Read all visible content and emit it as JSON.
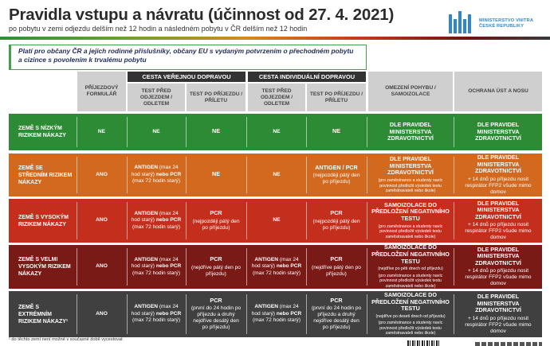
{
  "header": {
    "title": "Pravidla vstupu a návratu (účinnost od 27. 4. 2021)",
    "subtitle": "po pobytu v zemi odjezdu delším než 12 hodin a následném pobytu v ČR delším než 12 hodin"
  },
  "logo": {
    "line1": "MINISTERSTVO VNITRA",
    "line2": "ČESKÉ REPUBLIKY",
    "color": "#2f86c8"
  },
  "note": {
    "line1": "Platí pro občany ČR a jejich rodinné příslušníky, občany EU s vydaným potvrzením o přechodném pobytu",
    "line2": "a cizince s povolením k trvalému pobytu"
  },
  "groups": {
    "public": "CESTA VEŘEJNOU DOPRAVOU",
    "individual": "CESTA INDIVIDUÁLNÍ DOPRAVOU"
  },
  "columns": {
    "form": "PŘÍJEZDOVÝ FORMULÁŘ",
    "test_before_pub": "TEST PŘED ODJEZDEM / ODLETEM",
    "test_after_pub": "TEST PO PŘÍJEZDU / PŘÍLETU",
    "test_before_ind": "TEST PŘED ODJEZDEM / ODLETEM",
    "test_after_ind": "TEST PO PŘÍJEZDU / PŘÍLETU",
    "movement": "OMEZENÍ POHYBU / SAMOIZOLACE",
    "protection": "OCHRANA ÚST A NOSU"
  },
  "rows": [
    {
      "color": "#2e8b35",
      "zone": "ZEMĚ S NÍZKÝM RIZIKEM NÁKAZY",
      "form": "NE",
      "tb_pub": {
        "a": "NE",
        "b": "",
        "c": ""
      },
      "ta_pub": {
        "a": "NE",
        "b": ""
      },
      "tb_ind": {
        "a": "NE",
        "b": "",
        "c": ""
      },
      "ta_ind": {
        "a": "NE",
        "b": ""
      },
      "move": {
        "a": "DLE PRAVIDEL MINISTERSTVA ZDRAVOTNICTVÍ",
        "b": ""
      },
      "prot": {
        "a": "DLE PRAVIDEL MINISTERSTVA ZDRAVOTNICTVÍ",
        "b": ""
      }
    },
    {
      "color": "#d2691e",
      "zone": "ZEMĚ SE STŘEDNÍM RIZIKEM NÁKAZY",
      "form": "ANO",
      "tb_pub": {
        "a": "ANTIGEN",
        "b": " (max 24 hod starý) ",
        "c": "nebo PCR",
        "d": " (max 72 hodin starý)"
      },
      "ta_pub": {
        "a": "NE",
        "b": ""
      },
      "tb_ind": {
        "a": "NE",
        "b": "",
        "c": "",
        "d": ""
      },
      "ta_ind": {
        "a": "ANTIGEN / PCR",
        "b": "(nejpozději pátý den po příjezdu)"
      },
      "move": {
        "a": "DLE PRAVIDEL MINISTERSTVA ZDRAVOTNICTVÍ",
        "b": "(pro zaměstnance a studenty navíc povinnost předložit výsledek testu zaměstnavateli nebo škole)"
      },
      "prot": {
        "a": "DLE PRAVIDEL MINISTERSTVA ZDRAVOTNICTVÍ",
        "b": "+ 14 dnů po příjezdu nosit respirátor FFP2 všude mimo domov"
      }
    },
    {
      "color": "#c42f1d",
      "zone": "ZEMĚ S VYSOKÝM RIZIKEM NÁKAZY",
      "form": "ANO",
      "tb_pub": {
        "a": "ANTIGEN",
        "b": " (max 24 hod starý) ",
        "c": "nebo PCR",
        "d": " (max 72 hodin starý)"
      },
      "ta_pub": {
        "a": "PCR",
        "b": "(nejpozději pátý den po příjezdu)"
      },
      "tb_ind": {
        "a": "NE",
        "b": "",
        "c": "",
        "d": ""
      },
      "ta_ind": {
        "a": "PCR",
        "b": "(nejpozději pátý den po příjezdu)"
      },
      "move": {
        "a": "SAMOIZOLACE DO PŘEDLOŽENÍ NEGATIVNÍHO TESTU",
        "b": "(pro zaměstnance a studenty navíc povinnost předložit výsledek testu zaměstnavateli nebo škole)"
      },
      "prot": {
        "a": "DLE PRAVIDEL MINISTERSTVA ZDRAVOTNICTVÍ",
        "b": "+ 14 dnů po příjezdu nosit respirátor FFP2 všude mimo domov"
      }
    },
    {
      "color": "#7a1a17",
      "zone": "ZEMĚ S VELMI VYSOKÝM RIZIKEM NÁKAZY",
      "form": "ANO",
      "tb_pub": {
        "a": "ANTIGEN",
        "b": " (max 24 hod starý) ",
        "c": "nebo PCR",
        "d": " (max 72 hodin starý)"
      },
      "ta_pub": {
        "a": "PCR",
        "b": "(nejdříve pátý den po příjezdu)"
      },
      "tb_ind": {
        "a": "ANTIGEN",
        "b": " (max 24 hod starý) ",
        "c": "nebo PCR",
        "d": " (max 72 hodin starý)"
      },
      "ta_ind": {
        "a": "PCR",
        "b": "(nejdříve pátý den po příjezdu)"
      },
      "move": {
        "a": "SAMOIZOLACE DO PŘEDLOŽENÍ NEGATIVNÍHO TESTU",
        "b": "(nejdříve po pěti dnech od příjezdu)",
        "c": "(pro zaměstnance a studenty navíc povinnost předložit výsledek testu zaměstnavateli nebo škole)"
      },
      "prot": {
        "a": "DLE PRAVIDEL MINISTERSTVA ZDRAVOTNICTVÍ",
        "b": "+ 14 dnů po příjezdu nosit respirátor FFP2 všude mimo domov"
      }
    },
    {
      "color": "#404040",
      "zone": "ZEMĚ S EXTRÉMNÍM RIZIKEM NÁKAZY¹",
      "form": "ANO",
      "tb_pub": {
        "a": "ANTIGEN",
        "b": " (max 24 hod starý) ",
        "c": "nebo PCR",
        "d": " (max 72 hodin starý)"
      },
      "ta_pub": {
        "a": "PCR",
        "b": "(první do 24 hodin po příjezdu a druhý nejdříve desátý den po příjezdu)"
      },
      "tb_ind": {
        "a": "ANTIGEN",
        "b": " (max 24 hod starý) ",
        "c": "nebo PCR",
        "d": " (max 72 hodin starý)"
      },
      "ta_ind": {
        "a": "PCR",
        "b": "(první do 24 hodin po příjezdu a druhý nejdříve desátý den po příjezdu)"
      },
      "move": {
        "a": "SAMOIZOLACE DO PŘEDLOŽENÍ NEGATIVNÍHO TESTU",
        "b": "(nejdříve po deseti dnech od příjezdu)",
        "c": "(pro zaměstnance a studenty navíc povinnost předložit výsledek testu zaměstnavateli nebo škole)"
      },
      "prot": {
        "a": "DLE PRAVIDEL MINISTERSTVA ZDRAVOTNICTVÍ",
        "b": "+ 14 dnů po příjezdu nosit respirátor FFP2 všude mimo domov"
      }
    }
  ],
  "footnote": "¹ do těchto zemí není možné v současné době vycestovat"
}
